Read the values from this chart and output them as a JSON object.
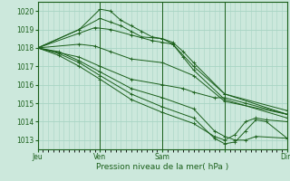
{
  "title": "",
  "xlabel": "Pression niveau de la mer( hPa )",
  "ylabel": "",
  "xlim": [
    0,
    96
  ],
  "ylim": [
    1012.5,
    1020.5
  ],
  "yticks": [
    1013,
    1014,
    1015,
    1016,
    1017,
    1018,
    1019,
    1020
  ],
  "xtick_positions": [
    0,
    24,
    48,
    72,
    96
  ],
  "xtick_labels": [
    "Jeu",
    "Ven",
    "Sam",
    "",
    "Dim"
  ],
  "background_color": "#cce8dc",
  "grid_color": "#a8d4c4",
  "line_color": "#1a5f1a",
  "line_width": 0.7,
  "marker": "+",
  "markersize": 2.5,
  "markerwidth": 0.6,
  "series": [
    {
      "x": [
        0,
        16,
        24,
        28,
        32,
        36,
        40,
        44,
        48,
        52,
        56,
        60,
        72,
        96
      ],
      "y": [
        1018.0,
        1019.0,
        1020.1,
        1020.0,
        1019.5,
        1019.2,
        1018.9,
        1018.6,
        1018.5,
        1018.2,
        1017.5,
        1016.8,
        1015.2,
        1014.2
      ]
    },
    {
      "x": [
        0,
        16,
        24,
        28,
        32,
        36,
        40,
        48,
        52,
        56,
        60,
        72,
        96
      ],
      "y": [
        1018.0,
        1019.0,
        1019.6,
        1019.4,
        1019.2,
        1018.9,
        1018.6,
        1018.5,
        1018.3,
        1017.8,
        1017.2,
        1015.5,
        1014.4
      ]
    },
    {
      "x": [
        0,
        16,
        22,
        28,
        36,
        44,
        48,
        52,
        60,
        72,
        96
      ],
      "y": [
        1018.0,
        1018.8,
        1019.1,
        1019.0,
        1018.7,
        1018.4,
        1018.3,
        1018.2,
        1017.0,
        1015.5,
        1014.6
      ]
    },
    {
      "x": [
        0,
        16,
        22,
        28,
        36,
        48,
        60,
        72,
        96
      ],
      "y": [
        1018.0,
        1018.2,
        1018.1,
        1017.8,
        1017.4,
        1017.2,
        1016.5,
        1015.1,
        1014.4
      ]
    },
    {
      "x": [
        0,
        16,
        24,
        36,
        48,
        56,
        60,
        68,
        72,
        80,
        96
      ],
      "y": [
        1018.0,
        1017.5,
        1017.0,
        1016.3,
        1016.0,
        1015.8,
        1015.6,
        1015.3,
        1015.3,
        1015.0,
        1014.4
      ]
    },
    {
      "x": [
        0,
        8,
        16,
        24,
        36,
        48,
        60,
        68,
        72,
        76,
        80,
        84,
        96
      ],
      "y": [
        1018.0,
        1017.8,
        1017.3,
        1016.7,
        1015.8,
        1015.3,
        1014.7,
        1013.5,
        1013.2,
        1013.0,
        1013.0,
        1013.2,
        1013.1
      ]
    },
    {
      "x": [
        0,
        8,
        16,
        24,
        36,
        48,
        60,
        68,
        72,
        76,
        80,
        84,
        88,
        96
      ],
      "y": [
        1018.0,
        1017.7,
        1017.2,
        1016.5,
        1015.5,
        1014.8,
        1014.2,
        1013.1,
        1012.8,
        1012.9,
        1013.5,
        1014.1,
        1014.0,
        1013.1
      ]
    },
    {
      "x": [
        0,
        8,
        16,
        24,
        36,
        48,
        60,
        68,
        72,
        76,
        80,
        84,
        88,
        96
      ],
      "y": [
        1018.0,
        1017.6,
        1017.0,
        1016.3,
        1015.2,
        1014.5,
        1013.9,
        1013.2,
        1013.0,
        1013.3,
        1014.0,
        1014.2,
        1014.1,
        1014.0
      ]
    }
  ]
}
